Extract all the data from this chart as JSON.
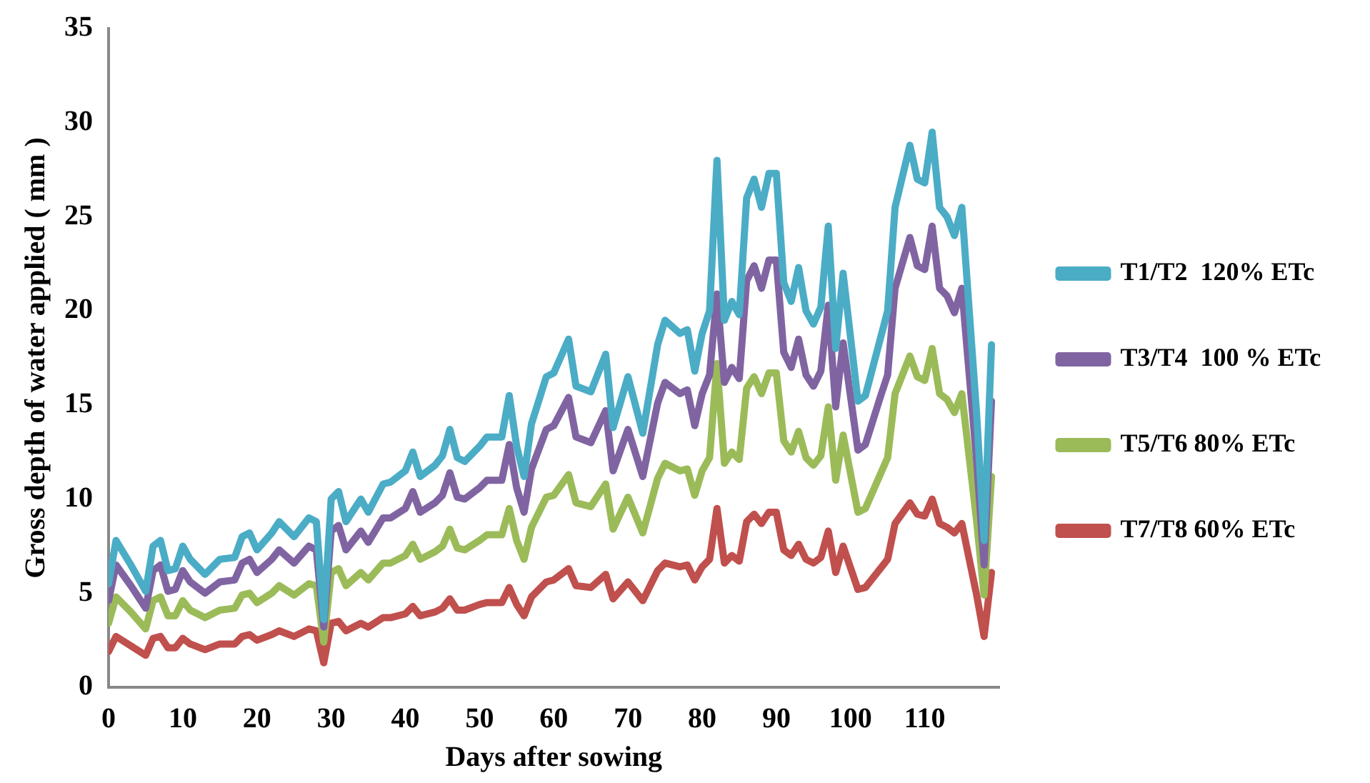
{
  "chart_data": {
    "type": "line",
    "xlabel": "Days after sowing",
    "ylabel": "Gross depth of water applied ( mm )",
    "x": [
      0,
      1,
      3,
      5,
      6,
      7,
      8,
      9,
      10,
      11,
      13,
      15,
      17,
      18,
      19,
      20,
      22,
      23,
      25,
      27,
      28,
      29,
      30,
      31,
      32,
      34,
      35,
      37,
      38,
      40,
      41,
      42,
      44,
      45,
      46,
      47,
      48,
      50,
      51,
      53,
      54,
      55,
      56,
      57,
      59,
      60,
      62,
      63,
      65,
      67,
      68,
      70,
      72,
      74,
      75,
      77,
      78,
      79,
      80,
      81,
      82,
      83,
      84,
      85,
      86,
      87,
      88,
      89,
      90,
      91,
      92,
      93,
      94,
      95,
      96,
      97,
      98,
      99,
      101,
      102,
      104,
      105,
      106,
      108,
      109,
      110,
      111,
      112,
      113,
      114,
      115,
      117,
      118,
      119
    ],
    "series": [
      {
        "name": "T1/T2  120% ETc",
        "color": "#4bacc6",
        "values": [
          5.5,
          7.8,
          6.5,
          5.1,
          7.5,
          7.8,
          6.2,
          6.3,
          7.5,
          6.8,
          6.0,
          6.8,
          6.9,
          8.0,
          8.2,
          7.3,
          8.2,
          8.8,
          8.0,
          9.0,
          8.8,
          3.6,
          10.0,
          10.4,
          8.8,
          10.0,
          9.3,
          10.8,
          10.9,
          11.5,
          12.5,
          11.2,
          11.8,
          12.3,
          13.7,
          12.2,
          12.0,
          12.8,
          13.3,
          13.3,
          15.5,
          12.8,
          11.2,
          14.0,
          16.5,
          16.7,
          18.5,
          16.0,
          15.7,
          17.7,
          13.8,
          16.5,
          13.5,
          18.2,
          19.5,
          18.8,
          19.0,
          16.8,
          18.8,
          20.0,
          28.0,
          19.5,
          20.5,
          19.8,
          26.0,
          27.0,
          25.5,
          27.3,
          27.3,
          21.5,
          20.5,
          22.3,
          20.0,
          19.3,
          20.2,
          24.5,
          18.0,
          22.0,
          15.2,
          15.5,
          18.5,
          20.0,
          25.5,
          28.8,
          27.0,
          26.8,
          29.5,
          25.5,
          25.0,
          24.0,
          25.5,
          14.5,
          7.8,
          18.2
        ]
      },
      {
        "name": "T3/T4  100 % ETc",
        "color": "#8064a2",
        "values": [
          4.6,
          6.5,
          5.4,
          4.2,
          6.2,
          6.5,
          5.1,
          5.2,
          6.2,
          5.6,
          5.0,
          5.6,
          5.7,
          6.6,
          6.8,
          6.1,
          6.8,
          7.3,
          6.6,
          7.5,
          7.3,
          3.2,
          8.3,
          8.6,
          7.3,
          8.3,
          7.7,
          9.0,
          9.0,
          9.5,
          10.4,
          9.3,
          9.8,
          10.2,
          11.4,
          10.1,
          10.0,
          10.6,
          11.0,
          11.0,
          12.9,
          10.6,
          9.3,
          11.6,
          13.7,
          13.9,
          15.4,
          13.3,
          13.0,
          14.7,
          11.5,
          13.7,
          11.2,
          15.1,
          16.2,
          15.6,
          15.8,
          13.9,
          15.6,
          16.6,
          20.9,
          16.2,
          17.0,
          16.4,
          21.6,
          22.4,
          21.2,
          22.7,
          22.7,
          17.8,
          17.0,
          18.5,
          16.6,
          16.0,
          16.8,
          20.3,
          14.9,
          18.3,
          12.6,
          12.9,
          15.4,
          16.6,
          21.2,
          23.9,
          22.4,
          22.2,
          24.5,
          21.2,
          20.8,
          19.9,
          21.2,
          12.0,
          6.5,
          15.2
        ]
      },
      {
        "name": "T5/T6 80% ETc",
        "color": "#9bbb59",
        "values": [
          3.4,
          4.8,
          4.0,
          3.1,
          4.6,
          4.8,
          3.8,
          3.8,
          4.6,
          4.1,
          3.7,
          4.1,
          4.2,
          4.9,
          5.0,
          4.5,
          5.0,
          5.4,
          4.9,
          5.5,
          5.4,
          2.4,
          6.1,
          6.3,
          5.4,
          6.1,
          5.7,
          6.6,
          6.6,
          7.0,
          7.6,
          6.8,
          7.2,
          7.5,
          8.4,
          7.4,
          7.3,
          7.8,
          8.1,
          8.1,
          9.5,
          7.8,
          6.8,
          8.5,
          10.1,
          10.2,
          11.3,
          9.8,
          9.6,
          10.8,
          8.4,
          10.1,
          8.2,
          11.1,
          11.9,
          11.5,
          11.6,
          10.2,
          11.5,
          12.2,
          17.2,
          11.9,
          12.5,
          12.1,
          15.9,
          16.5,
          15.6,
          16.7,
          16.7,
          13.1,
          12.5,
          13.6,
          12.2,
          11.8,
          12.3,
          14.9,
          11.0,
          13.4,
          9.3,
          9.5,
          11.3,
          12.2,
          15.6,
          17.6,
          16.5,
          16.3,
          18.0,
          15.6,
          15.3,
          14.6,
          15.6,
          8.8,
          4.9,
          11.2
        ]
      },
      {
        "name": "T7/T8 60% ETc",
        "color": "#c0504d",
        "values": [
          1.9,
          2.7,
          2.2,
          1.7,
          2.6,
          2.7,
          2.1,
          2.1,
          2.6,
          2.3,
          2.0,
          2.3,
          2.3,
          2.7,
          2.8,
          2.5,
          2.8,
          3.0,
          2.7,
          3.1,
          3.0,
          1.3,
          3.4,
          3.5,
          3.0,
          3.4,
          3.2,
          3.7,
          3.7,
          3.9,
          4.3,
          3.8,
          4.0,
          4.2,
          4.7,
          4.1,
          4.1,
          4.4,
          4.5,
          4.5,
          5.3,
          4.4,
          3.8,
          4.8,
          5.6,
          5.7,
          6.3,
          5.4,
          5.3,
          6.0,
          4.7,
          5.6,
          4.6,
          6.2,
          6.6,
          6.4,
          6.5,
          5.7,
          6.4,
          6.8,
          9.5,
          6.6,
          7.0,
          6.7,
          8.8,
          9.2,
          8.7,
          9.3,
          9.3,
          7.3,
          7.0,
          7.6,
          6.8,
          6.6,
          6.9,
          8.3,
          6.1,
          7.5,
          5.2,
          5.3,
          6.3,
          6.8,
          8.7,
          9.8,
          9.2,
          9.1,
          10.0,
          8.7,
          8.5,
          8.2,
          8.7,
          4.9,
          2.7,
          6.1
        ]
      }
    ],
    "xlim": [
      0,
      120
    ],
    "xticks": [
      0,
      10,
      20,
      30,
      40,
      50,
      60,
      70,
      80,
      90,
      100,
      110
    ],
    "ylim": [
      0,
      35
    ],
    "yticks": [
      0,
      5,
      10,
      15,
      20,
      25,
      30,
      35
    ],
    "grid": false,
    "legend": "right",
    "marker": "none",
    "line_style": "solid"
  }
}
